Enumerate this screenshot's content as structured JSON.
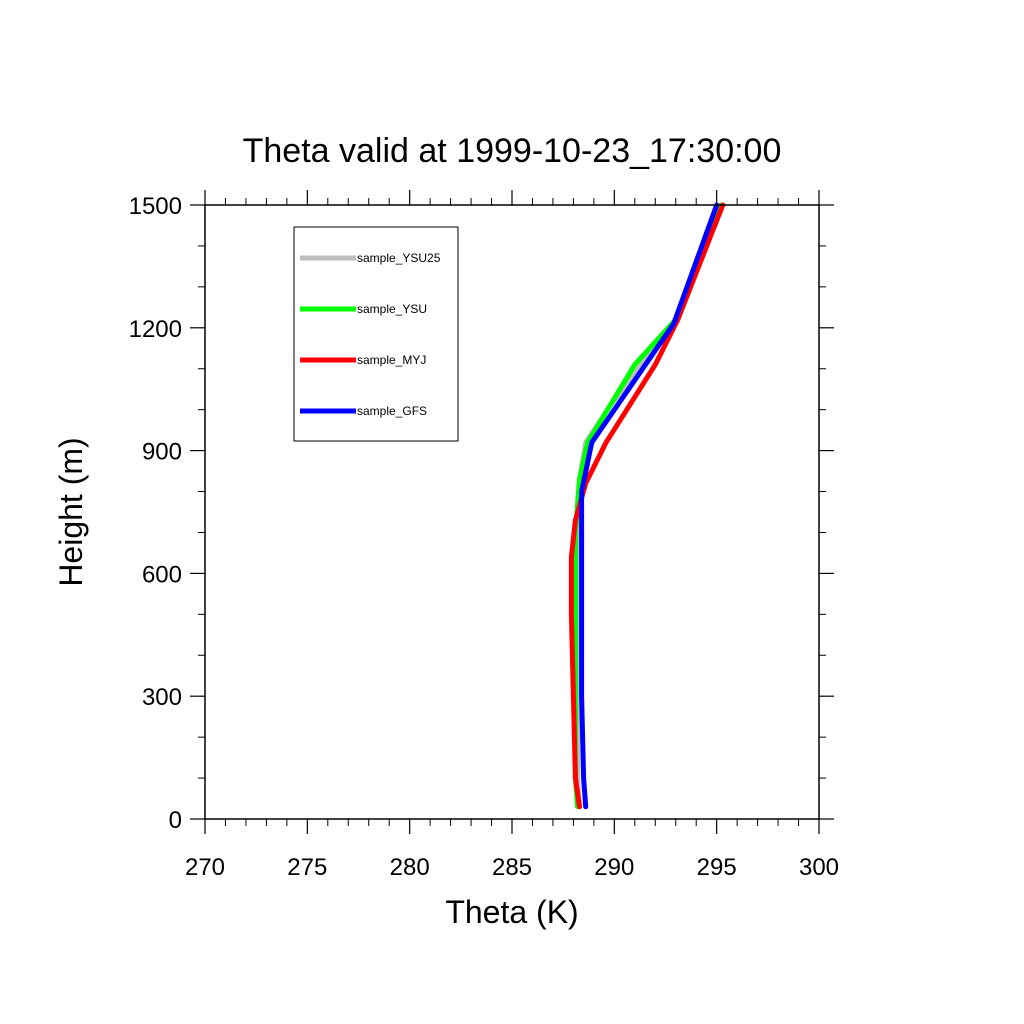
{
  "chart_data": {
    "type": "line",
    "title": "Theta valid at 1999-10-23_17:30:00",
    "xlabel": "Theta (K)",
    "ylabel": "Height (m)",
    "xlim": [
      270,
      300
    ],
    "ylim": [
      0,
      1500
    ],
    "xticks": [
      270,
      275,
      280,
      285,
      290,
      295,
      300
    ],
    "yticks": [
      0,
      300,
      600,
      900,
      1200,
      1500
    ],
    "xtick_labels": [
      "270",
      "275",
      "280",
      "285",
      "290",
      "295",
      "300"
    ],
    "ytick_labels": [
      "0",
      "300",
      "600",
      "900",
      "1200",
      "1500"
    ],
    "legend_position": "top-left",
    "grid": false,
    "series": [
      {
        "name": "sample_YSU25",
        "color": "#bdbdbd",
        "points": [
          [
            288.3,
            30
          ],
          [
            288.2,
            100
          ],
          [
            288.2,
            300
          ],
          [
            288.2,
            500
          ],
          [
            288.2,
            700
          ],
          [
            288.3,
            830
          ],
          [
            288.6,
            920
          ],
          [
            289.8,
            1010
          ],
          [
            293.0,
            1220
          ],
          [
            295.3,
            1500
          ]
        ]
      },
      {
        "name": "sample_YSU",
        "color": "#00ff00",
        "points": [
          [
            288.2,
            30
          ],
          [
            288.1,
            100
          ],
          [
            288.1,
            300
          ],
          [
            288.1,
            500
          ],
          [
            288.1,
            700
          ],
          [
            288.3,
            830
          ],
          [
            288.7,
            920
          ],
          [
            291.0,
            1110
          ],
          [
            293.0,
            1220
          ],
          [
            295.2,
            1500
          ]
        ]
      },
      {
        "name": "sample_MYJ",
        "color": "#ff0000",
        "points": [
          [
            288.3,
            30
          ],
          [
            288.1,
            100
          ],
          [
            288.0,
            300
          ],
          [
            287.9,
            500
          ],
          [
            287.9,
            640
          ],
          [
            288.1,
            730
          ],
          [
            288.6,
            820
          ],
          [
            289.6,
            920
          ],
          [
            292.0,
            1110
          ],
          [
            293.1,
            1220
          ],
          [
            295.3,
            1500
          ]
        ]
      },
      {
        "name": "sample_GFS",
        "color": "#0000ff",
        "points": [
          [
            288.6,
            30
          ],
          [
            288.5,
            100
          ],
          [
            288.4,
            300
          ],
          [
            288.4,
            500
          ],
          [
            288.4,
            700
          ],
          [
            288.4,
            800
          ],
          [
            288.9,
            920
          ],
          [
            292.9,
            1210
          ],
          [
            295.0,
            1500
          ]
        ]
      }
    ]
  }
}
